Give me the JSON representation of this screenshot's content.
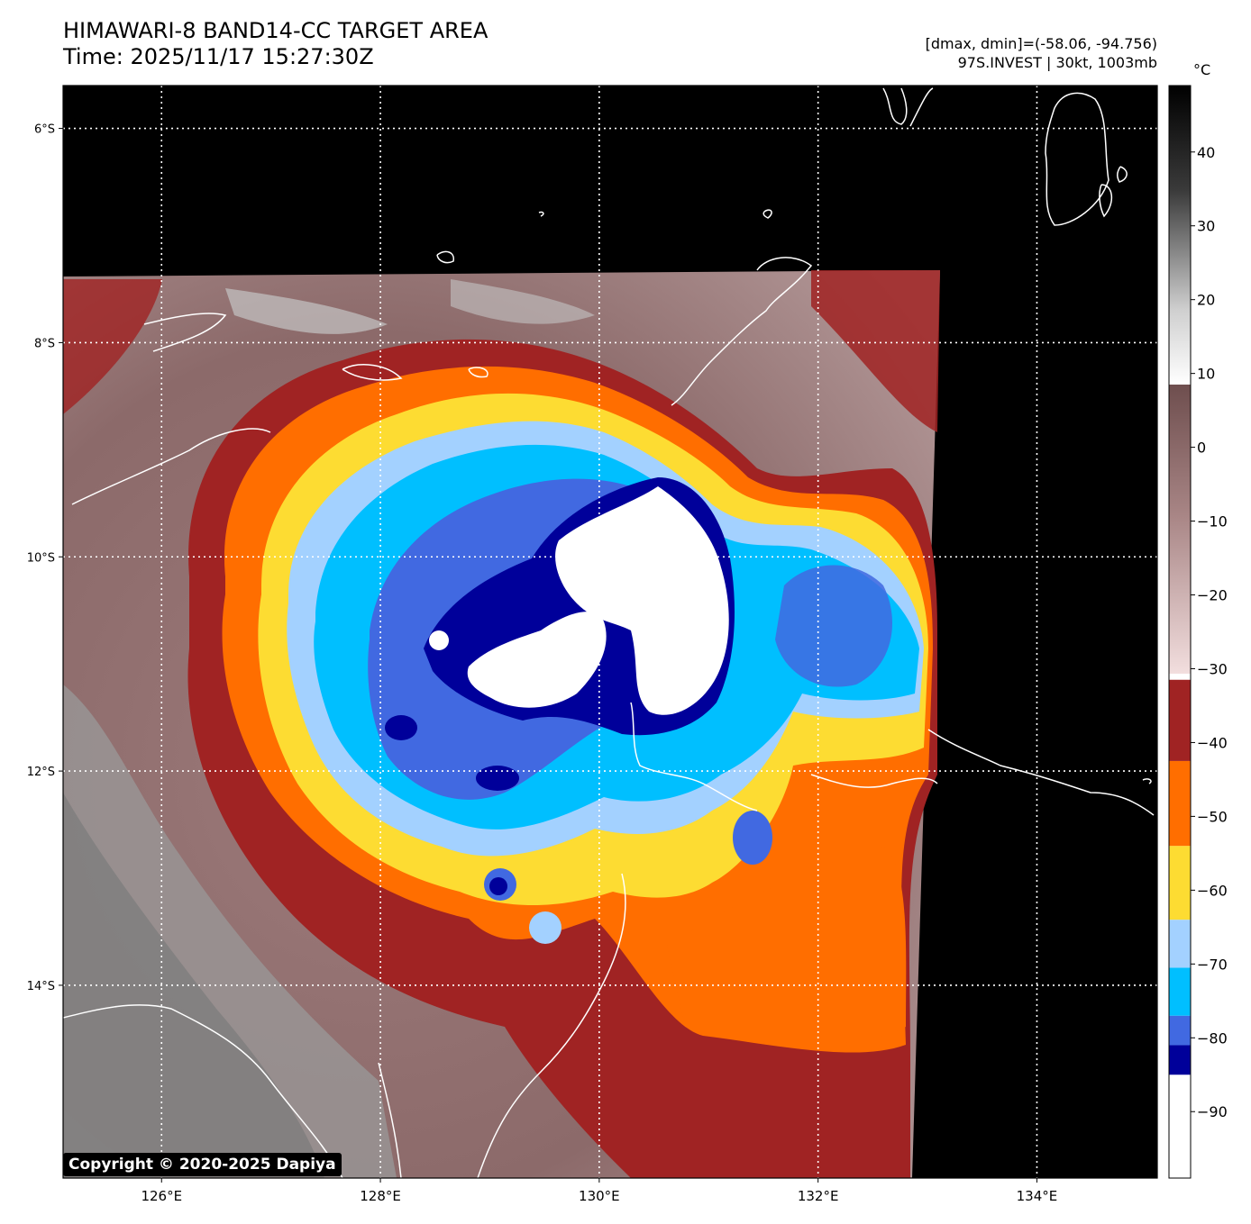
{
  "header": {
    "title_line1": "HIMAWARI-8 BAND14-CC TARGET AREA",
    "title_line2": "Time: 2025/11/17 15:27:30Z",
    "dminmax": "[dmax, dmin]=(-58.06, -94.756)",
    "storm": "97S.INVEST | 30kt, 1003mb"
  },
  "copyright": "Copyright © 2020-2025 Dapiya",
  "map": {
    "lon_range": [
      125.1,
      135.1
    ],
    "lat_range": [
      -15.8,
      -5.6
    ],
    "lon_ticks": [
      126,
      128,
      130,
      132,
      134
    ],
    "lon_labels": [
      "126°E",
      "128°E",
      "130°E",
      "132°E",
      "134°E"
    ],
    "lat_ticks": [
      -6,
      -8,
      -10,
      -12,
      -14
    ],
    "lat_labels": [
      "6°S",
      "8°S",
      "10°S",
      "12°S",
      "14°S"
    ],
    "coastline_color": "#ffffff"
  },
  "colorbar": {
    "unit": "°C",
    "range": [
      -99,
      49
    ],
    "tick_values": [
      40,
      30,
      20,
      10,
      0,
      -10,
      -20,
      -30,
      -40,
      -50,
      -60,
      -70,
      -80,
      -90
    ],
    "tick_labels": [
      "40",
      "30",
      "20",
      "10",
      "0",
      "−10",
      "−20",
      "−30",
      "−40",
      "−50",
      "−60",
      "−70",
      "−80",
      "−90"
    ],
    "bands": [
      {
        "from": -99,
        "to": -85,
        "color": "#ffffff"
      },
      {
        "from": -85,
        "to": -81,
        "color": "#00009a"
      },
      {
        "from": -81,
        "to": -77,
        "color": "#4169e1"
      },
      {
        "from": -77,
        "to": -70.5,
        "color": "#00bfff"
      },
      {
        "from": -70.5,
        "to": -64,
        "color": "#a3d1ff"
      },
      {
        "from": -64,
        "to": -54,
        "color": "#fddc32"
      },
      {
        "from": -54,
        "to": -42.5,
        "color": "#ff6e00"
      },
      {
        "from": -42.5,
        "to": -31.5,
        "color": "#a02323"
      }
    ]
  }
}
